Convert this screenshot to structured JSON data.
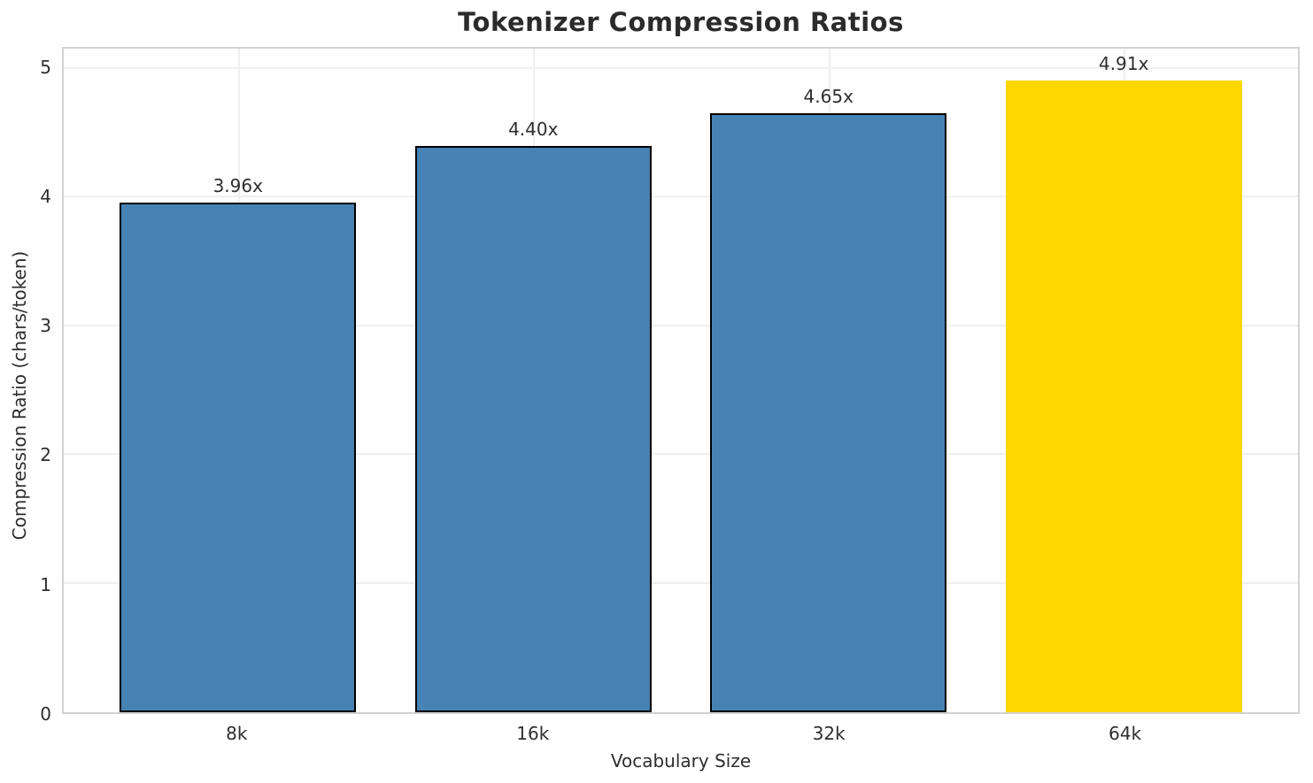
{
  "chart_data": {
    "type": "bar",
    "title": "Tokenizer Compression Ratios",
    "categories": [
      "8k",
      "16k",
      "32k",
      "64k"
    ],
    "values": [
      3.96,
      4.4,
      4.65,
      4.91
    ],
    "bar_labels": [
      "3.96x",
      "4.40x",
      "4.65x",
      "4.91x"
    ],
    "xlabel": "Vocabulary Size",
    "ylabel": "Compression Ratio (chars/token)",
    "ylim": [
      0,
      5.155
    ],
    "yticks": [
      0,
      1,
      2,
      3,
      4,
      5
    ],
    "bar_width_fraction": 0.8,
    "x_units_span": 4.18,
    "x_left_pad_units": 0.59,
    "grid": "horizontal and vertical, light gray",
    "legend_position": "none",
    "bar_colors": [
      "#4682B4",
      "#4682B4",
      "#4682B4",
      "#FFD700"
    ],
    "bar_edge_colors": [
      "#000000",
      "#000000",
      "#000000",
      "none"
    ],
    "highlight_index": 3
  },
  "colors": {
    "bar_blue": "#4682B4",
    "bar_gold": "#FFD700",
    "bar_edge": "#000000",
    "gridline": "#efefef",
    "spine": "#d2d2d2",
    "text": "#2e2e2e",
    "title_text": "#2b2b2b",
    "background": "#ffffff"
  }
}
